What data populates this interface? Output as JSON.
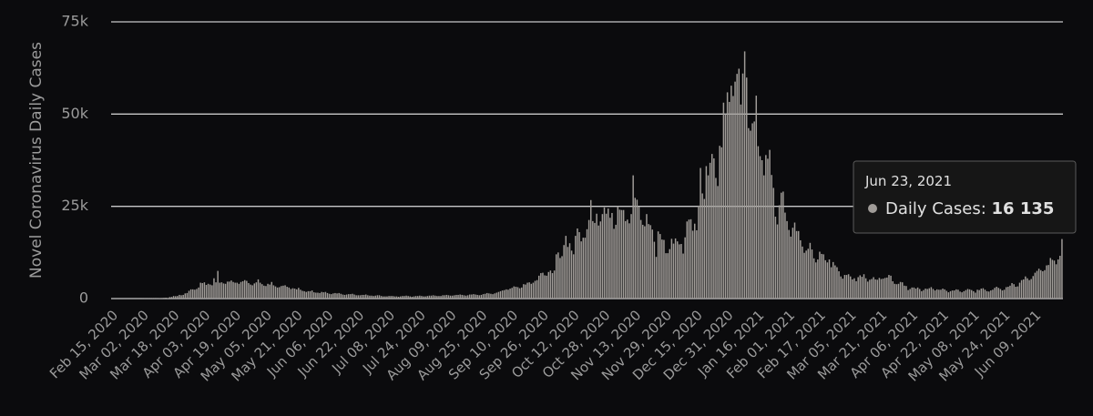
{
  "chart_data": {
    "type": "bar",
    "y_label": "Novel Coronavirus Daily Cases",
    "color": "#a09c98",
    "ylim": [
      0,
      75000
    ],
    "yticks": [
      0,
      {
        "value": 25000,
        "label": "25k"
      },
      {
        "value": 50000,
        "label": "50k"
      },
      {
        "value": 75000,
        "label": "75k"
      }
    ],
    "grid": true,
    "tooltip": {
      "date": "Jun 23, 2021",
      "name": "Daily Cases:",
      "value_label": "16 135"
    },
    "categories": [
      "Feb 15, 2020",
      null,
      null,
      null,
      null,
      null,
      null,
      null,
      null,
      null,
      null,
      null,
      null,
      null,
      null,
      null,
      "Mar 02, 2020",
      null,
      null,
      null,
      null,
      null,
      null,
      null,
      null,
      null,
      null,
      null,
      null,
      null,
      null,
      null,
      "Mar 18, 2020",
      null,
      null,
      null,
      null,
      null,
      null,
      null,
      null,
      null,
      null,
      null,
      null,
      null,
      null,
      null,
      "Apr 03, 2020",
      null,
      null,
      null,
      null,
      null,
      null,
      null,
      null,
      null,
      null,
      null,
      null,
      null,
      null,
      null,
      "Apr 19, 2020",
      null,
      null,
      null,
      null,
      null,
      null,
      null,
      null,
      null,
      null,
      null,
      null,
      null,
      null,
      null,
      "May 05, 2020",
      null,
      null,
      null,
      null,
      null,
      null,
      null,
      null,
      null,
      null,
      null,
      null,
      null,
      null,
      null,
      "May 21, 2020",
      null,
      null,
      null,
      null,
      null,
      null,
      null,
      null,
      null,
      null,
      null,
      null,
      null,
      null,
      null,
      "Jun 06, 2020",
      null,
      null,
      null,
      null,
      null,
      null,
      null,
      null,
      null,
      null,
      null,
      null,
      null,
      null,
      null,
      "Jun 22, 2020",
      null,
      null,
      null,
      null,
      null,
      null,
      null,
      null,
      null,
      null,
      null,
      null,
      null,
      null,
      null,
      "Jul 08, 2020",
      null,
      null,
      null,
      null,
      null,
      null,
      null,
      null,
      null,
      null,
      null,
      null,
      null,
      null,
      null,
      "Jul 24, 2020",
      null,
      null,
      null,
      null,
      null,
      null,
      null,
      null,
      null,
      null,
      null,
      null,
      null,
      null,
      null,
      "Aug 09, 2020",
      null,
      null,
      null,
      null,
      null,
      null,
      null,
      null,
      null,
      null,
      null,
      null,
      null,
      null,
      null,
      "Aug 25, 2020",
      null,
      null,
      null,
      null,
      null,
      null,
      null,
      null,
      null,
      null,
      null,
      null,
      null,
      null,
      null,
      "Sep 10, 2020",
      null,
      null,
      null,
      null,
      null,
      null,
      null,
      null,
      null,
      null,
      null,
      null,
      null,
      null,
      null,
      "Sep 26, 2020",
      null,
      null,
      null,
      null,
      null,
      null,
      null,
      null,
      null,
      null,
      null,
      null,
      null,
      null,
      null,
      "Oct 12, 2020",
      null,
      null,
      null,
      null,
      null,
      null,
      null,
      null,
      null,
      null,
      null,
      null,
      null,
      null,
      null,
      "Oct 28, 2020",
      null,
      null,
      null,
      null,
      null,
      null,
      null,
      null,
      null,
      null,
      null,
      null,
      null,
      null,
      null,
      "Nov 13, 2020",
      null,
      null,
      null,
      null,
      null,
      null,
      null,
      null,
      null,
      null,
      null,
      null,
      null,
      null,
      null,
      "Nov 29, 2020",
      null,
      null,
      null,
      null,
      null,
      null,
      null,
      null,
      null,
      null,
      null,
      null,
      null,
      null,
      null,
      "Dec 15, 2020",
      null,
      null,
      null,
      null,
      null,
      null,
      null,
      null,
      null,
      null,
      null,
      null,
      null,
      null,
      null,
      "Dec 31, 2020",
      null,
      null,
      null,
      null,
      null,
      null,
      null,
      null,
      null,
      null,
      null,
      null,
      null,
      null,
      null,
      "Jan 16, 2021",
      null,
      null,
      null,
      null,
      null,
      null,
      null,
      null,
      null,
      null,
      null,
      null,
      null,
      null,
      null,
      "Feb 01, 2021",
      null,
      null,
      null,
      null,
      null,
      null,
      null,
      null,
      null,
      null,
      null,
      null,
      null,
      null,
      null,
      "Feb 17, 2021",
      null,
      null,
      null,
      null,
      null,
      null,
      null,
      null,
      null,
      null,
      null,
      null,
      null,
      null,
      null,
      "Mar 05, 2021",
      null,
      null,
      null,
      null,
      null,
      null,
      null,
      null,
      null,
      null,
      null,
      null,
      null,
      null,
      null,
      "Mar 21, 2021",
      null,
      null,
      null,
      null,
      null,
      null,
      null,
      null,
      null,
      null,
      null,
      null,
      null,
      null,
      null,
      "Apr 06, 2021",
      null,
      null,
      null,
      null,
      null,
      null,
      null,
      null,
      null,
      null,
      null,
      null,
      null,
      null,
      null,
      "Apr 22, 2021",
      null,
      null,
      null,
      null,
      null,
      null,
      null,
      null,
      null,
      null,
      null,
      null,
      null,
      null,
      null,
      "May 08, 2021",
      null,
      null,
      null,
      null,
      null,
      null,
      null,
      null,
      null,
      null,
      null,
      null,
      null,
      null,
      null,
      "May 24, 2021",
      null,
      null,
      null,
      null,
      null,
      null,
      null,
      null,
      null,
      null,
      null,
      null,
      null,
      null,
      null,
      "Jun 09, 2021",
      null,
      null,
      null,
      null,
      null,
      null,
      null,
      null,
      null,
      null,
      null,
      null,
      null,
      null
    ],
    "values": [
      0,
      0,
      0,
      0,
      0,
      0,
      0,
      0,
      0,
      0,
      0,
      0,
      0,
      5,
      10,
      10,
      20,
      40,
      30,
      50,
      50,
      70,
      60,
      60,
      80,
      130,
      150,
      200,
      240,
      150,
      400,
      450,
      700,
      650,
      700,
      1000,
      900,
      1000,
      1400,
      1500,
      2100,
      2500,
      2500,
      2400,
      2600,
      3000,
      4300,
      4200,
      4400,
      3700,
      4000,
      3800,
      3600,
      5500,
      4400,
      7500,
      4300,
      4400,
      4100,
      4000,
      4600,
      4600,
      4900,
      4500,
      4300,
      4300,
      4000,
      4500,
      4700,
      5000,
      4800,
      4200,
      3800,
      3600,
      4100,
      4400,
      5200,
      4300,
      3900,
      3500,
      3400,
      4000,
      3800,
      4500,
      3600,
      3300,
      3000,
      3100,
      3400,
      3500,
      3600,
      3200,
      3000,
      2600,
      2800,
      2700,
      2500,
      2900,
      2400,
      2100,
      2000,
      1800,
      2000,
      2000,
      2200,
      1700,
      1600,
      1600,
      1500,
      1800,
      1700,
      1800,
      1500,
      1300,
      1200,
      1400,
      1500,
      1400,
      1500,
      1300,
      1100,
      1000,
      1100,
      1200,
      1200,
      1300,
      1100,
      900,
      900,
      900,
      1000,
      1000,
      1100,
      900,
      800,
      800,
      700,
      800,
      900,
      900,
      700,
      600,
      600,
      600,
      700,
      700,
      700,
      600,
      600,
      500,
      600,
      700,
      700,
      800,
      700,
      600,
      500,
      600,
      700,
      700,
      800,
      700,
      600,
      600,
      700,
      800,
      800,
      900,
      800,
      700,
      700,
      700,
      900,
      900,
      1000,
      900,
      800,
      800,
      900,
      1000,
      1000,
      1100,
      1000,
      900,
      800,
      900,
      1100,
      1100,
      1200,
      1100,
      1000,
      900,
      1000,
      1200,
      1300,
      1500,
      1400,
      1300,
      1200,
      1400,
      1600,
      1800,
      2000,
      2200,
      2300,
      2500,
      2400,
      2700,
      2900,
      3300,
      3200,
      3100,
      2800,
      3000,
      3900,
      3800,
      4300,
      4400,
      4000,
      4300,
      4800,
      5000,
      6200,
      6900,
      7000,
      6300,
      6200,
      7200,
      7600,
      6900,
      7600,
      12000,
      12500,
      11000,
      11500,
      14500,
      17000,
      14000,
      15000,
      13000,
      12000,
      17000,
      19000,
      18000,
      15500,
      16500,
      16500,
      18800,
      21300,
      26700,
      21000,
      20500,
      23000,
      19800,
      20900,
      22900,
      24700,
      23000,
      24400,
      21900,
      23200,
      18900,
      20000,
      25000,
      24100,
      24000,
      24000,
      21000,
      21400,
      20400,
      22900,
      33400,
      27300,
      26800,
      24900,
      21300,
      20000,
      19600,
      22900,
      20200,
      19900,
      18700,
      15400,
      11300,
      18200,
      17500,
      16000,
      15900,
      12300,
      12300,
      13400,
      16200,
      14900,
      16300,
      15500,
      14700,
      14800,
      12200,
      16600,
      20900,
      21400,
      21500,
      18400,
      20300,
      18500,
      25200,
      35400,
      28500,
      27000,
      35900,
      33400,
      36800,
      39200,
      38000,
      32700,
      30500,
      41400,
      41000,
      53100,
      50000,
      55900,
      53300,
      57700,
      54900,
      58800,
      60900,
      62300,
      52600,
      61000,
      67000,
      59900,
      46200,
      45500,
      47500,
      48000,
      55000,
      41300,
      38600,
      37500,
      33400,
      38900,
      37900,
      40300,
      33500,
      30000,
      22200,
      20100,
      25300,
      28700,
      29000,
      23300,
      21000,
      18600,
      16800,
      19200,
      20600,
      18300,
      18300,
      15800,
      14100,
      12400,
      13000,
      13500,
      15100,
      13300,
      10900,
      9800,
      10600,
      12700,
      12100,
      12000,
      10400,
      9800,
      10600,
      8500,
      9900,
      9000,
      8500,
      7400,
      6000,
      5400,
      6400,
      6400,
      6600,
      6000,
      5200,
      5500,
      4700,
      5800,
      6300,
      5900,
      6600,
      5500,
      4600,
      5100,
      5300,
      5800,
      5200,
      5100,
      5600,
      5300,
      5400,
      5600,
      5700,
      6400,
      6200,
      4700,
      4000,
      3900,
      4000,
      4500,
      4400,
      3500,
      3400,
      2300,
      2600,
      3000,
      3000,
      2700,
      3000,
      2600,
      2000,
      2300,
      2700,
      2600,
      2800,
      3100,
      2600,
      2200,
      2500,
      2400,
      2400,
      2700,
      2500,
      2100,
      1700,
      2000,
      2200,
      2200,
      2500,
      2400,
      1900,
      1700,
      2000,
      2300,
      2600,
      2500,
      2300,
      2000,
      1600,
      2400,
      2300,
      2700,
      2800,
      2400,
      2000,
      1900,
      2200,
      2400,
      2900,
      3200,
      2900,
      2600,
      2200,
      2400,
      3100,
      3200,
      3500,
      4200,
      3900,
      3200,
      3300,
      4300,
      5000,
      5200,
      6000,
      5500,
      5000,
      5300,
      6100,
      7000,
      7500,
      8100,
      7700,
      7400,
      7700,
      9000,
      9100,
      11000,
      10500,
      10300,
      9300,
      10600,
      11600,
      16135
    ]
  }
}
